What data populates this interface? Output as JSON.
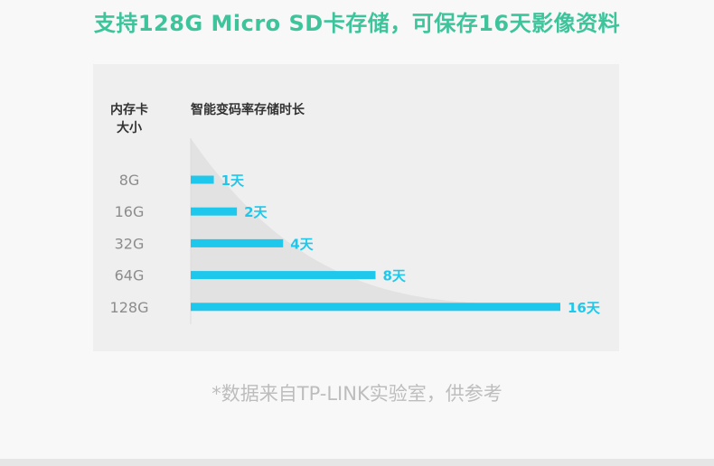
{
  "headline": "支持128G Micro SD卡存储，可保存16天影像资料",
  "footnote": "*数据来自TP-LINK实验室，供参考",
  "colors": {
    "headline": "#3dc49b",
    "bar": "#1ec8ec",
    "bar_label": "#1ec8ec",
    "card_label": "#8c8c8c",
    "header_text": "#333333",
    "panel_bg": "#efefef",
    "curve_fill": "#e2e2e2",
    "footnote": "#bdbdbd"
  },
  "chart_data": {
    "type": "bar",
    "orientation": "horizontal",
    "category_header": "内存卡\n大小",
    "value_header": "智能变码率存储时长",
    "categories": [
      "8G",
      "16G",
      "32G",
      "64G",
      "128G"
    ],
    "values": [
      1,
      2,
      4,
      8,
      16
    ],
    "value_labels": [
      "1天",
      "2天",
      "4天",
      "8天",
      "16天"
    ],
    "xlim": [
      0,
      16
    ],
    "grid": false,
    "legend": "none"
  }
}
